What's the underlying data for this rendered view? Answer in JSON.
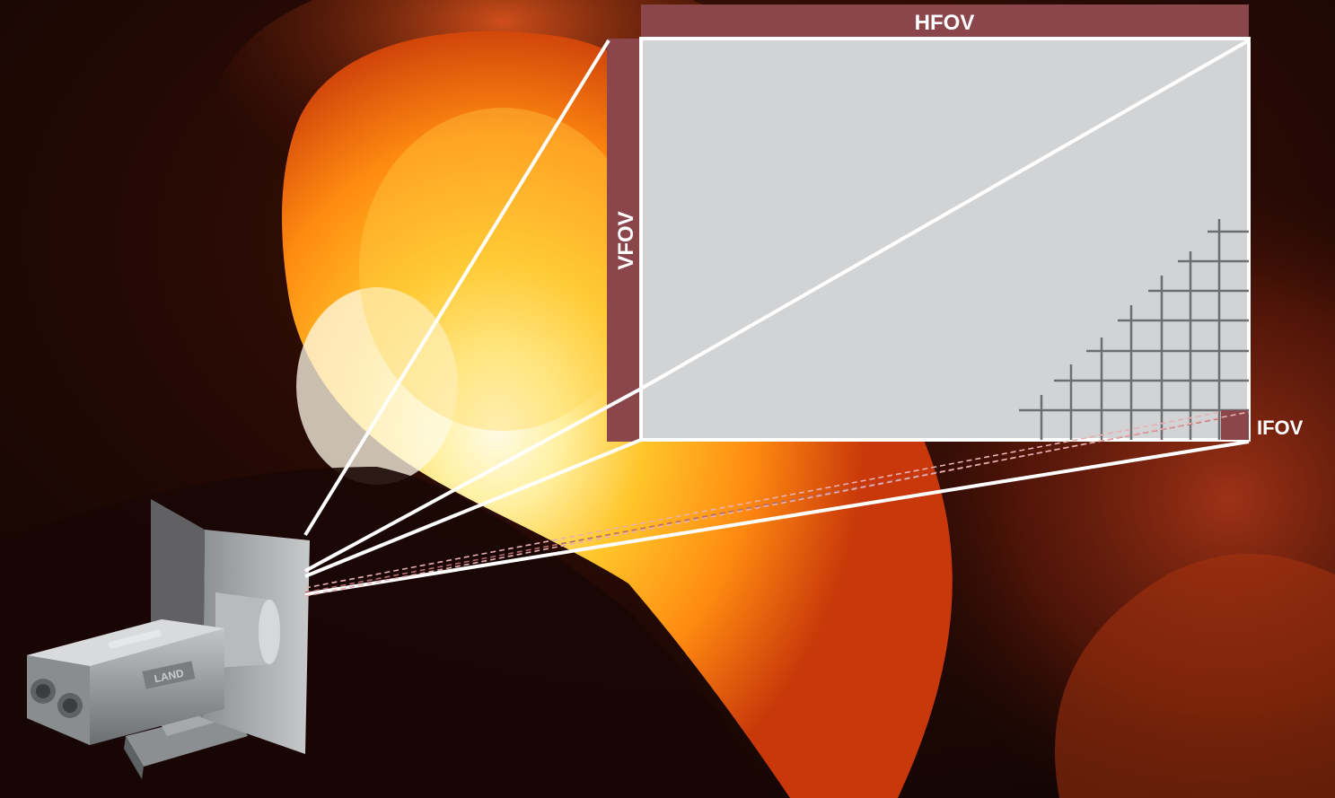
{
  "labels": {
    "hfov": "HFOV",
    "vfov": "VFOV",
    "ifov": "IFOV"
  },
  "camera": {
    "brand": "LAND"
  },
  "colors": {
    "fov_bar": "#8a464a",
    "frame_fill": "#d2d3d5",
    "frame_stroke": "#ffffff",
    "grid_line": "#6d6e70",
    "background_dark": "#0d0604",
    "flame_core": "#fff6c8",
    "flame_mid": "#ffb300",
    "flame_outer": "#d8440a"
  },
  "icons": {
    "camera": "thermal-imaging-camera-icon"
  }
}
